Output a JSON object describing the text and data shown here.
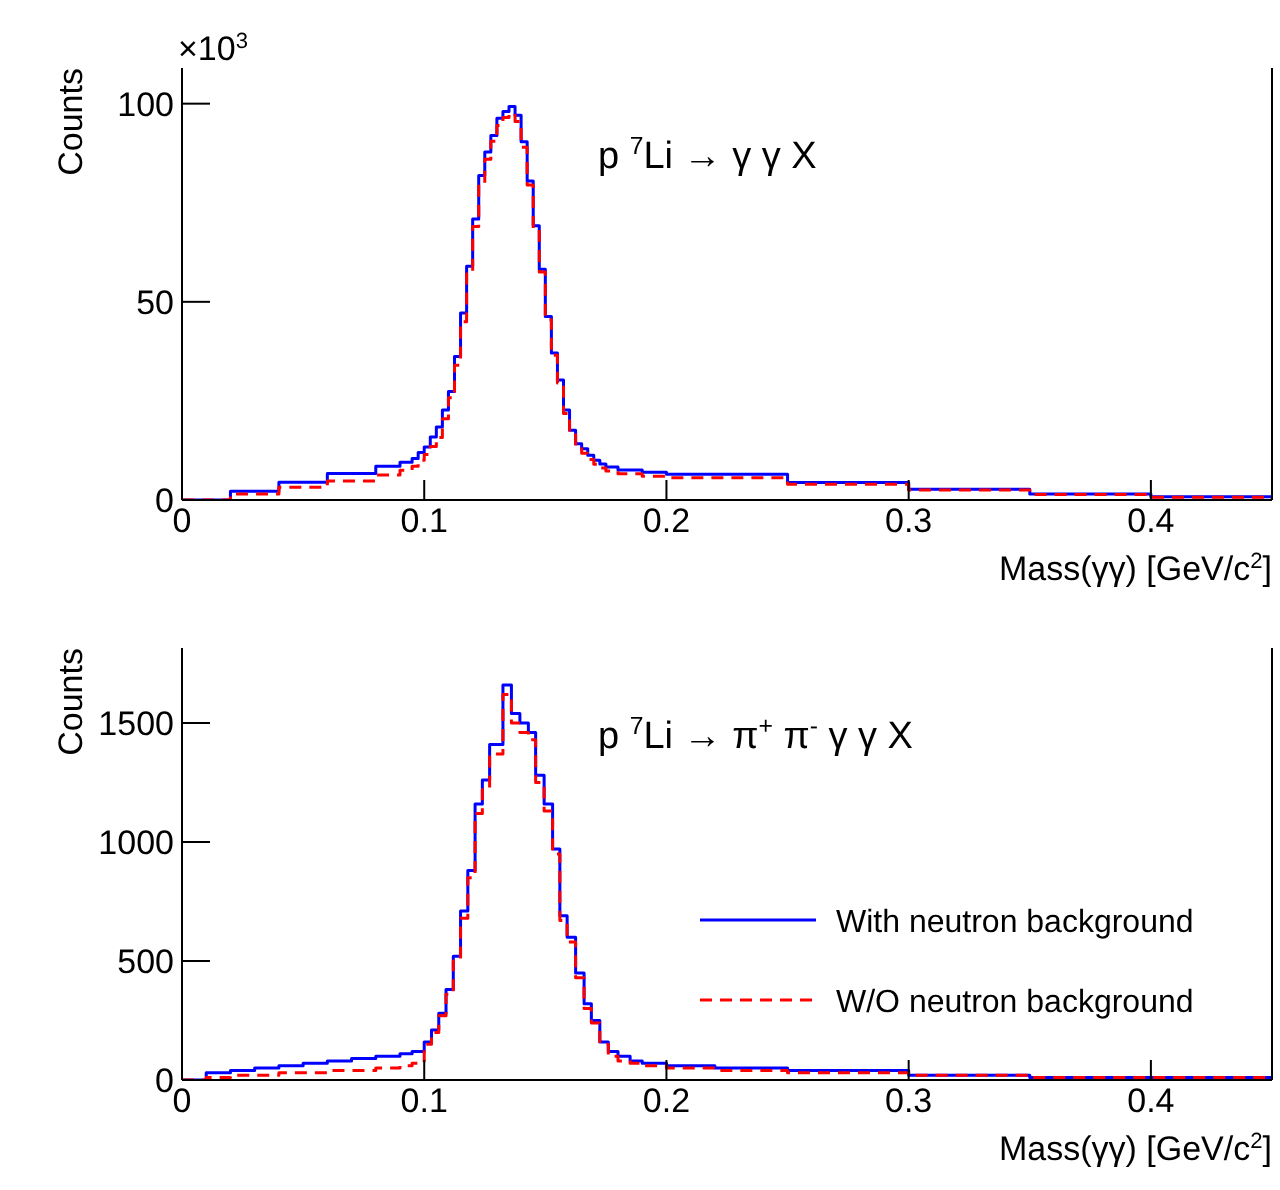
{
  "chart_data": [
    {
      "type": "step",
      "annotations": [
        "p $^{7}$Li → γ γ X",
        "×10$^{3}$"
      ],
      "xlabel": "Mass(γγ) [GeV/c$^{2}$]",
      "ylabel": "Counts",
      "xlim": [
        0,
        0.45
      ],
      "xticks": [
        0,
        0.1,
        0.2,
        0.3,
        0.4
      ],
      "ylim": [
        0,
        109
      ],
      "yticks": [
        0,
        50,
        100
      ],
      "grid": false,
      "legend": false,
      "marker": "none",
      "series": [
        {
          "color": "#0000ff",
          "line_style": "solid",
          "x": [
            0,
            0.02,
            0.04,
            0.06,
            0.08,
            0.09,
            0.095,
            0.0975,
            0.1,
            0.1025,
            0.105,
            0.1075,
            0.11,
            0.1125,
            0.115,
            0.1175,
            0.12,
            0.1225,
            0.125,
            0.1275,
            0.13,
            0.1325,
            0.135,
            0.1375,
            0.14,
            0.1425,
            0.145,
            0.1475,
            0.15,
            0.1525,
            0.155,
            0.1575,
            0.16,
            0.1625,
            0.165,
            0.1675,
            0.17,
            0.1725,
            0.175,
            0.18,
            0.19,
            0.2,
            0.25,
            0.3,
            0.35,
            0.4,
            0.45
          ],
          "values": [
            0,
            2.2,
            4.5,
            6.7,
            8.5,
            9.5,
            10.5,
            12,
            13.4,
            15.9,
            18.4,
            22.7,
            27.4,
            36.2,
            47.2,
            59,
            70.9,
            81.9,
            87.8,
            92,
            96.3,
            98,
            99.3,
            97.1,
            90.4,
            80.5,
            69.2,
            58.2,
            46.3,
            37.1,
            30.3,
            22.7,
            17.6,
            14.2,
            12.9,
            11.3,
            10,
            9.1,
            8.3,
            7.6,
            7,
            6.5,
            4.4,
            2.7,
            1.5,
            0.8,
            0.5
          ]
        },
        {
          "color": "#ff0000",
          "line_style": "dashed",
          "x": [
            0,
            0.02,
            0.04,
            0.06,
            0.08,
            0.09,
            0.095,
            0.0975,
            0.1,
            0.1025,
            0.105,
            0.1075,
            0.11,
            0.1125,
            0.115,
            0.1175,
            0.12,
            0.1225,
            0.125,
            0.1275,
            0.13,
            0.1325,
            0.135,
            0.1375,
            0.14,
            0.1425,
            0.145,
            0.1475,
            0.15,
            0.1525,
            0.155,
            0.1575,
            0.16,
            0.1625,
            0.165,
            0.1675,
            0.17,
            0.1725,
            0.175,
            0.18,
            0.19,
            0.2,
            0.25,
            0.3,
            0.35,
            0.4,
            0.45
          ],
          "values": [
            0,
            1.5,
            3.2,
            4.8,
            6.3,
            7.5,
            8.5,
            10,
            11.5,
            13.5,
            15.8,
            20.5,
            25.8,
            34,
            45,
            57,
            69,
            80,
            86,
            90.5,
            94.5,
            96.5,
            97.5,
            95.5,
            89,
            79.5,
            68.5,
            57.5,
            45.5,
            36.5,
            29.5,
            21.8,
            16.8,
            13.3,
            11.8,
            10.2,
            9,
            8.1,
            7.3,
            6.6,
            6,
            5.6,
            4,
            2.5,
            1.4,
            0.7,
            0.4
          ]
        }
      ]
    },
    {
      "type": "step",
      "annotations": [
        "p $^{7}$Li → π$^{+}$ π$^{-}$ γ γ X"
      ],
      "xlabel": "Mass(γγ) [GeV/c$^{2}$]",
      "ylabel": "Counts",
      "xlim": [
        0,
        0.45
      ],
      "xticks": [
        0,
        0.1,
        0.2,
        0.3,
        0.4
      ],
      "ylim": [
        0,
        1815
      ],
      "yticks": [
        0,
        500,
        1000,
        1500
      ],
      "grid": false,
      "legend": "bottom right",
      "marker": "none",
      "series": [
        {
          "name": "With neutron background",
          "color": "#0000ff",
          "line_style": "solid",
          "x": [
            0,
            0.01,
            0.02,
            0.03,
            0.04,
            0.05,
            0.06,
            0.07,
            0.08,
            0.09,
            0.095,
            0.1,
            0.103,
            0.106,
            0.109,
            0.112,
            0.115,
            0.118,
            0.121,
            0.124,
            0.127,
            0.1325,
            0.136,
            0.1395,
            0.143,
            0.146,
            0.1495,
            0.153,
            0.156,
            0.159,
            0.1625,
            0.166,
            0.169,
            0.1725,
            0.176,
            0.18,
            0.185,
            0.19,
            0.2,
            0.22,
            0.25,
            0.3,
            0.35,
            0.4,
            0.45
          ],
          "values": [
            0,
            30,
            40,
            50,
            60,
            70,
            80,
            90,
            100,
            110,
            120,
            160,
            210,
            280,
            380,
            520,
            710,
            880,
            1160,
            1260,
            1410,
            1660,
            1540,
            1500,
            1460,
            1280,
            1160,
            970,
            690,
            600,
            450,
            320,
            250,
            160,
            120,
            100,
            80,
            70,
            60,
            50,
            40,
            20,
            10,
            10,
            10
          ]
        },
        {
          "name": "W/O neutron background",
          "color": "#ff0000",
          "line_style": "dashed",
          "x": [
            0,
            0.01,
            0.02,
            0.03,
            0.04,
            0.05,
            0.06,
            0.07,
            0.08,
            0.09,
            0.095,
            0.1,
            0.103,
            0.106,
            0.109,
            0.112,
            0.115,
            0.118,
            0.121,
            0.124,
            0.127,
            0.1325,
            0.136,
            0.1395,
            0.143,
            0.146,
            0.1495,
            0.153,
            0.156,
            0.159,
            0.1625,
            0.166,
            0.169,
            0.1725,
            0.176,
            0.18,
            0.185,
            0.19,
            0.2,
            0.22,
            0.25,
            0.3,
            0.35,
            0.4,
            0.45
          ],
          "values": [
            0,
            10,
            20,
            20,
            30,
            30,
            40,
            40,
            50,
            60,
            70,
            150,
            200,
            270,
            360,
            500,
            680,
            850,
            1120,
            1220,
            1370,
            1620,
            1500,
            1460,
            1430,
            1250,
            1130,
            950,
            670,
            580,
            430,
            300,
            240,
            150,
            100,
            80,
            70,
            60,
            50,
            40,
            30,
            20,
            10,
            10,
            0
          ]
        }
      ]
    }
  ]
}
